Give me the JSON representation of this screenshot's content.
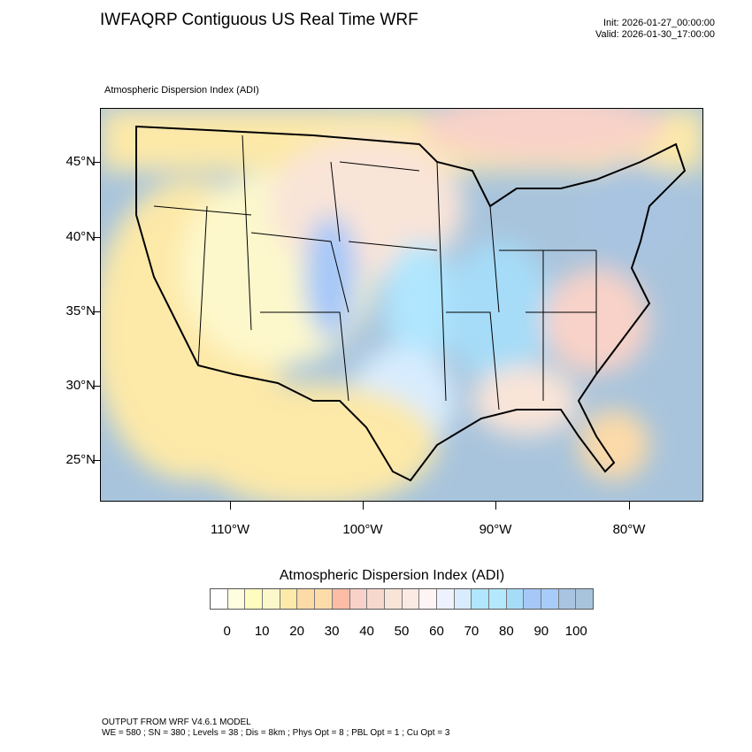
{
  "header": {
    "title": "IWFAQRP Contiguous US Real Time WRF",
    "init": "Init: 2026-01-27_00:00:00",
    "valid": "Valid: 2026-01-30_17:00:00",
    "subtitle": "Atmospheric Dispersion Index   (ADI)"
  },
  "map": {
    "lat_labels": [
      "45°N",
      "40°N",
      "35°N",
      "30°N",
      "25°N"
    ],
    "lon_labels": [
      "110°W",
      "100°W",
      "90°W",
      "80°W"
    ],
    "colors": {
      "ocean": "#a8c4dc",
      "land_low": "#fde9a8",
      "land_mid": "#f8d2c8",
      "land_high": "#b0e6fe"
    }
  },
  "colorbar": {
    "title": "Atmospheric Dispersion Index  (ADI)",
    "labels": [
      "0",
      "10",
      "20",
      "30",
      "40",
      "50",
      "60",
      "70",
      "80",
      "90",
      "100"
    ],
    "colors": [
      "#ffffff",
      "#fffde0",
      "#fffcc0",
      "#fdf8cc",
      "#fde9a8",
      "#fddaa8",
      "#fddcaa",
      "#fdbca6",
      "#f8d2c8",
      "#f7d8cc",
      "#f9e4d8",
      "#fbeae4",
      "#fff4f4",
      "#eef2fe",
      "#d8ecfe",
      "#b0e6fe",
      "#b4e8fe",
      "#a6dcf8",
      "#a6c8f8",
      "#a8ccfa",
      "#a8c4e0",
      "#a8c4dc"
    ]
  },
  "footer": {
    "line1": "OUTPUT FROM WRF V4.6.1 MODEL",
    "line2": "WE = 580 ; SN = 380 ; Levels = 38 ; Dis = 8km ; Phys Opt = 8 ; PBL Opt = 1 ; Cu Opt = 3"
  }
}
